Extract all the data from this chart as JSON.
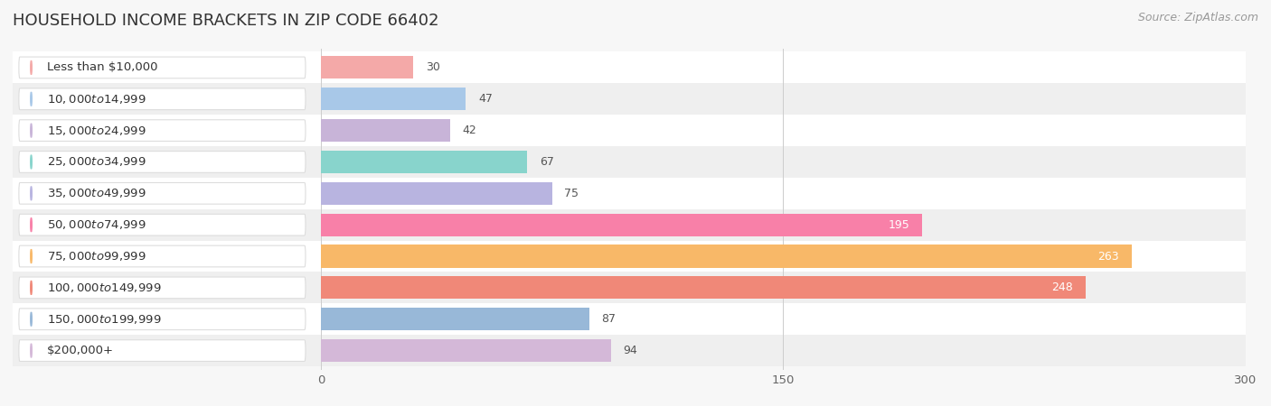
{
  "title": "HOUSEHOLD INCOME BRACKETS IN ZIP CODE 66402",
  "source": "Source: ZipAtlas.com",
  "categories": [
    "Less than $10,000",
    "$10,000 to $14,999",
    "$15,000 to $24,999",
    "$25,000 to $34,999",
    "$35,000 to $49,999",
    "$50,000 to $74,999",
    "$75,000 to $99,999",
    "$100,000 to $149,999",
    "$150,000 to $199,999",
    "$200,000+"
  ],
  "values": [
    30,
    47,
    42,
    67,
    75,
    195,
    263,
    248,
    87,
    94
  ],
  "bar_colors": [
    "#f4a9a8",
    "#a8c8e8",
    "#c8b4d8",
    "#88d4cc",
    "#b8b4e0",
    "#f880a8",
    "#f8b868",
    "#f08878",
    "#98b8d8",
    "#d4b8d8"
  ],
  "label_pill_colors": [
    "#f4a9a8",
    "#a8c8e8",
    "#c8b4d8",
    "#88d4cc",
    "#b8b4e0",
    "#f880a8",
    "#f8b868",
    "#f08878",
    "#98b8d8",
    "#d4b8d8"
  ],
  "xlim": [
    -100,
    300
  ],
  "data_xlim": [
    0,
    300
  ],
  "xticks": [
    0,
    150,
    300
  ],
  "background_color": "#f7f7f7",
  "title_fontsize": 13,
  "label_fontsize": 9.5,
  "value_fontsize": 9,
  "source_fontsize": 9
}
